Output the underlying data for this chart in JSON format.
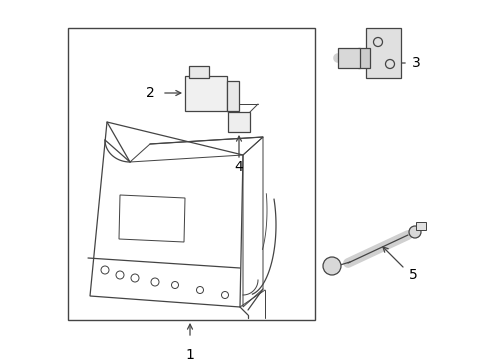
{
  "background_color": "#ffffff",
  "line_color": "#444444",
  "label_color": "#000000",
  "lw": 0.9,
  "figsize": [
    4.89,
    3.6
  ],
  "dpi": 100
}
